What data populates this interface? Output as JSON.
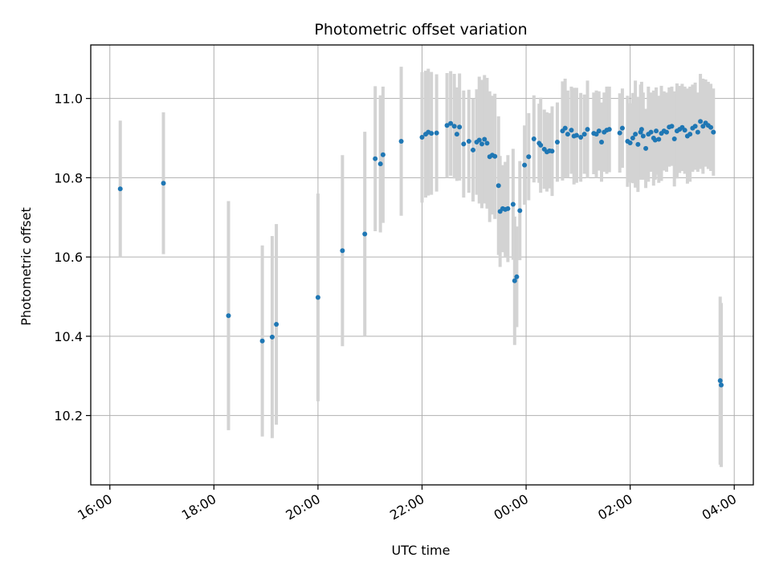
{
  "chart_data": {
    "type": "scatter",
    "title": "Photometric offset variation",
    "xlabel": "UTC time",
    "ylabel": "Photometric offset",
    "x_tick_labels": [
      "16:00",
      "18:00",
      "20:00",
      "22:00",
      "00:00",
      "02:00",
      "04:00"
    ],
    "x_ticks_hours": [
      16,
      18,
      20,
      22,
      24,
      26,
      28
    ],
    "y_tick_labels": [
      "10.2",
      "10.4",
      "10.6",
      "10.8",
      "11.0"
    ],
    "y_ticks": [
      10.2,
      10.4,
      10.6,
      10.8,
      11.0
    ],
    "xlim_hours": [
      15.633,
      28.367
    ],
    "ylim": [
      10.025,
      11.135
    ],
    "grid": true,
    "colors": {
      "point": "#1f77b4",
      "errorbar": "#d3d3d3",
      "grid": "#b0b0b0"
    },
    "series": [
      {
        "x_hours": [
          16.2,
          17.03,
          18.28,
          18.93,
          19.12,
          19.2,
          20.0,
          20.47,
          20.9,
          21.1,
          21.2,
          21.25,
          21.6,
          22.0,
          22.07,
          22.12,
          22.18,
          22.28,
          22.48,
          22.55,
          22.62,
          22.67,
          22.72,
          22.8,
          22.9,
          22.98,
          23.05,
          23.1,
          23.15,
          23.2,
          23.25,
          23.3,
          23.35,
          23.4,
          23.47,
          23.5,
          23.55,
          23.6,
          23.65,
          23.75,
          23.78,
          23.82,
          23.88,
          23.97,
          24.05,
          24.15,
          24.25,
          24.28,
          24.35,
          24.4,
          24.45,
          24.5,
          24.6,
          24.7,
          24.75,
          24.8,
          24.87,
          24.92,
          24.97,
          25.05,
          25.12,
          25.18,
          25.3,
          25.35,
          25.4,
          25.45,
          25.5,
          25.55,
          25.6,
          25.8,
          25.85,
          25.95,
          26.0,
          26.05,
          26.1,
          26.15,
          26.2,
          26.22,
          26.25,
          26.3,
          26.35,
          26.4,
          26.45,
          26.48,
          26.5,
          26.55,
          26.6,
          26.65,
          26.7,
          26.75,
          26.8,
          26.85,
          26.9,
          26.95,
          27.0,
          27.05,
          27.1,
          27.15,
          27.2,
          27.25,
          27.3,
          27.35,
          27.4,
          27.45,
          27.5,
          27.55,
          27.6,
          27.73,
          27.75
        ],
        "y": [
          10.772,
          10.786,
          10.452,
          10.388,
          10.398,
          10.43,
          10.498,
          10.616,
          10.658,
          10.848,
          10.835,
          10.858,
          10.892,
          10.902,
          10.91,
          10.915,
          10.912,
          10.913,
          10.932,
          10.937,
          10.93,
          10.91,
          10.928,
          10.885,
          10.892,
          10.87,
          10.89,
          10.895,
          10.885,
          10.897,
          10.887,
          10.853,
          10.857,
          10.854,
          10.78,
          10.715,
          10.722,
          10.72,
          10.722,
          10.733,
          10.54,
          10.55,
          10.717,
          10.832,
          10.853,
          10.898,
          10.887,
          10.882,
          10.872,
          10.865,
          10.868,
          10.867,
          10.89,
          10.918,
          10.925,
          10.91,
          10.92,
          10.905,
          10.907,
          10.902,
          10.91,
          10.922,
          10.912,
          10.91,
          10.918,
          10.89,
          10.915,
          10.92,
          10.922,
          10.913,
          10.925,
          10.892,
          10.888,
          10.9,
          10.91,
          10.884,
          10.915,
          10.922,
          10.905,
          10.874,
          10.91,
          10.915,
          10.9,
          10.895,
          10.918,
          10.897,
          10.912,
          10.918,
          10.915,
          10.928,
          10.93,
          10.898,
          10.918,
          10.922,
          10.927,
          10.92,
          10.905,
          10.91,
          10.925,
          10.93,
          10.915,
          10.942,
          10.93,
          10.938,
          10.932,
          10.927,
          10.915,
          10.288,
          10.277
        ],
        "err": [
          0.172,
          0.179,
          0.289,
          0.241,
          0.255,
          0.253,
          0.262,
          0.241,
          0.258,
          0.183,
          0.173,
          0.172,
          0.188,
          0.165,
          0.16,
          0.16,
          0.155,
          0.148,
          0.132,
          0.132,
          0.132,
          0.118,
          0.135,
          0.135,
          0.13,
          0.13,
          0.133,
          0.16,
          0.162,
          0.162,
          0.165,
          0.165,
          0.15,
          0.158,
          0.175,
          0.14,
          0.11,
          0.12,
          0.135,
          0.14,
          0.162,
          0.127,
          0.125,
          0.1,
          0.11,
          0.11,
          0.1,
          0.12,
          0.1,
          0.1,
          0.095,
          0.113,
          0.1,
          0.125,
          0.125,
          0.11,
          0.11,
          0.122,
          0.12,
          0.112,
          0.1,
          0.123,
          0.103,
          0.11,
          0.1,
          0.1,
          0.1,
          0.11,
          0.108,
          0.1,
          0.1,
          0.115,
          0.1,
          0.114,
          0.135,
          0.12,
          0.12,
          0.12,
          0.11,
          0.1,
          0.12,
          0.1,
          0.12,
          0.1,
          0.11,
          0.11,
          0.12,
          0.1,
          0.1,
          0.1,
          0.1,
          0.12,
          0.12,
          0.11,
          0.11,
          0.11,
          0.12,
          0.12,
          0.11,
          0.11,
          0.1,
          0.12,
          0.12,
          0.11,
          0.11,
          0.11,
          0.11,
          0.212,
          0.207
        ]
      }
    ]
  }
}
